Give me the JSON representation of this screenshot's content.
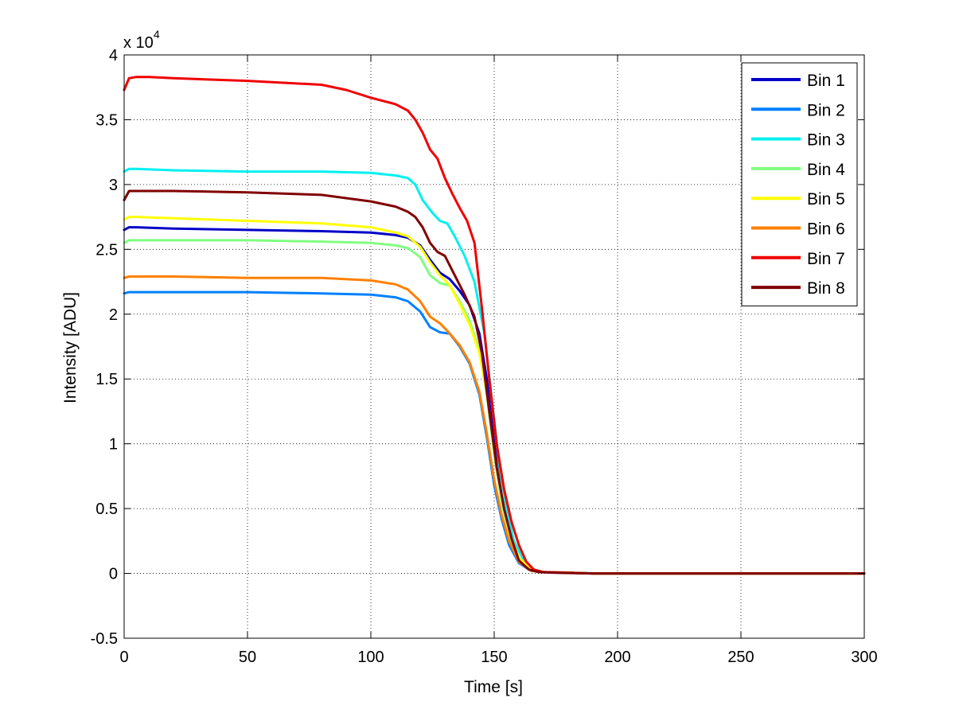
{
  "chart_data": {
    "type": "line",
    "xlabel": "Time [s]",
    "ylabel": "Intensity [ADU]",
    "y_exponent_label": "x 10",
    "y_exponent_power": "4",
    "xlim": [
      0,
      300
    ],
    "ylim": [
      -0.5,
      4
    ],
    "y_scale_note": "values in units of 10^4 ADU",
    "x_ticks": [
      "0",
      "50",
      "100",
      "150",
      "200",
      "250",
      "300"
    ],
    "y_ticks": [
      "-0.5",
      "0",
      "0.5",
      "1",
      "1.5",
      "2",
      "2.5",
      "3",
      "3.5",
      "4"
    ],
    "grid": true,
    "legend_position": "top-right",
    "series": [
      {
        "name": "Bin 1",
        "color": "#0000c8",
        "x": [
          0,
          2,
          5,
          20,
          50,
          80,
          100,
          110,
          115,
          120,
          124,
          128,
          132,
          136,
          140,
          144,
          147,
          150,
          153,
          156,
          160,
          165,
          170,
          180,
          190,
          300
        ],
        "y": [
          2.65,
          2.67,
          2.67,
          2.66,
          2.65,
          2.64,
          2.63,
          2.61,
          2.59,
          2.53,
          2.42,
          2.32,
          2.27,
          2.18,
          2.07,
          1.85,
          1.5,
          1.0,
          0.6,
          0.32,
          0.12,
          0.03,
          0.01,
          0.005,
          0,
          0
        ]
      },
      {
        "name": "Bin 2",
        "color": "#0080ff",
        "x": [
          0,
          2,
          5,
          20,
          50,
          80,
          100,
          110,
          115,
          120,
          124,
          128,
          132,
          136,
          140,
          144,
          147,
          150,
          153,
          156,
          160,
          165,
          170,
          180,
          190,
          300
        ],
        "y": [
          2.16,
          2.17,
          2.17,
          2.17,
          2.17,
          2.16,
          2.15,
          2.13,
          2.1,
          2.02,
          1.9,
          1.86,
          1.85,
          1.75,
          1.62,
          1.38,
          1.05,
          0.68,
          0.42,
          0.22,
          0.08,
          0.02,
          0.01,
          0.005,
          0,
          0
        ]
      },
      {
        "name": "Bin 3",
        "color": "#00f0f0",
        "x": [
          0,
          2,
          5,
          20,
          50,
          80,
          100,
          110,
          115,
          118,
          121,
          125,
          128,
          131,
          134,
          138,
          142,
          146,
          149,
          152,
          155,
          158,
          162,
          166,
          170,
          180,
          190,
          300
        ],
        "y": [
          3.1,
          3.12,
          3.12,
          3.11,
          3.1,
          3.1,
          3.09,
          3.07,
          3.05,
          3.0,
          2.88,
          2.78,
          2.72,
          2.7,
          2.6,
          2.45,
          2.25,
          1.85,
          1.35,
          0.85,
          0.5,
          0.25,
          0.1,
          0.03,
          0.01,
          0.005,
          0,
          0
        ]
      },
      {
        "name": "Bin 4",
        "color": "#80ff80",
        "x": [
          0,
          2,
          5,
          20,
          50,
          80,
          100,
          110,
          115,
          120,
          124,
          128,
          132,
          136,
          140,
          144,
          147,
          150,
          153,
          156,
          160,
          165,
          170,
          180,
          190,
          300
        ],
        "y": [
          2.55,
          2.57,
          2.57,
          2.57,
          2.57,
          2.56,
          2.55,
          2.53,
          2.51,
          2.44,
          2.3,
          2.24,
          2.22,
          2.1,
          1.95,
          1.72,
          1.38,
          0.92,
          0.55,
          0.3,
          0.1,
          0.03,
          0.01,
          0.005,
          0,
          0
        ]
      },
      {
        "name": "Bin 5",
        "color": "#ffff00",
        "x": [
          0,
          2,
          5,
          20,
          50,
          80,
          100,
          110,
          115,
          120,
          124,
          128,
          132,
          136,
          140,
          144,
          147,
          150,
          153,
          156,
          160,
          165,
          170,
          180,
          190,
          300
        ],
        "y": [
          2.73,
          2.75,
          2.75,
          2.74,
          2.72,
          2.7,
          2.67,
          2.63,
          2.6,
          2.52,
          2.4,
          2.3,
          2.22,
          2.08,
          1.92,
          1.7,
          1.4,
          0.95,
          0.6,
          0.32,
          0.12,
          0.03,
          0.01,
          0.005,
          0,
          0
        ]
      },
      {
        "name": "Bin 6",
        "color": "#ff8000",
        "x": [
          0,
          2,
          5,
          20,
          50,
          80,
          100,
          110,
          115,
          120,
          124,
          128,
          132,
          136,
          140,
          144,
          147,
          150,
          153,
          156,
          160,
          165,
          170,
          180,
          190,
          300
        ],
        "y": [
          2.28,
          2.29,
          2.29,
          2.29,
          2.28,
          2.28,
          2.26,
          2.23,
          2.19,
          2.1,
          1.98,
          1.93,
          1.85,
          1.76,
          1.63,
          1.4,
          1.08,
          0.72,
          0.45,
          0.25,
          0.09,
          0.02,
          0.01,
          0.005,
          0,
          0
        ]
      },
      {
        "name": "Bin 7",
        "color": "#f00000",
        "x": [
          0,
          2,
          5,
          10,
          20,
          50,
          80,
          90,
          100,
          110,
          115,
          118,
          121,
          124,
          127,
          130,
          133,
          136,
          139,
          142,
          145,
          148,
          151,
          154,
          157,
          160,
          163,
          166,
          170,
          180,
          190,
          300
        ],
        "y": [
          3.73,
          3.82,
          3.83,
          3.83,
          3.82,
          3.8,
          3.77,
          3.73,
          3.67,
          3.62,
          3.57,
          3.5,
          3.4,
          3.27,
          3.2,
          3.05,
          2.93,
          2.82,
          2.72,
          2.55,
          2.05,
          1.5,
          1.0,
          0.65,
          0.4,
          0.22,
          0.09,
          0.03,
          0.01,
          0.005,
          0,
          0
        ]
      },
      {
        "name": "Bin 8",
        "color": "#800000",
        "x": [
          0,
          2,
          5,
          20,
          50,
          80,
          100,
          110,
          115,
          118,
          121,
          124,
          127,
          130,
          134,
          138,
          142,
          145,
          148,
          151,
          154,
          157,
          160,
          164,
          168,
          175,
          190,
          300
        ],
        "y": [
          2.88,
          2.95,
          2.95,
          2.95,
          2.94,
          2.92,
          2.87,
          2.83,
          2.79,
          2.75,
          2.67,
          2.55,
          2.48,
          2.45,
          2.3,
          2.15,
          1.98,
          1.7,
          1.25,
          0.82,
          0.5,
          0.27,
          0.1,
          0.03,
          0.01,
          0.005,
          0,
          0
        ]
      }
    ]
  }
}
